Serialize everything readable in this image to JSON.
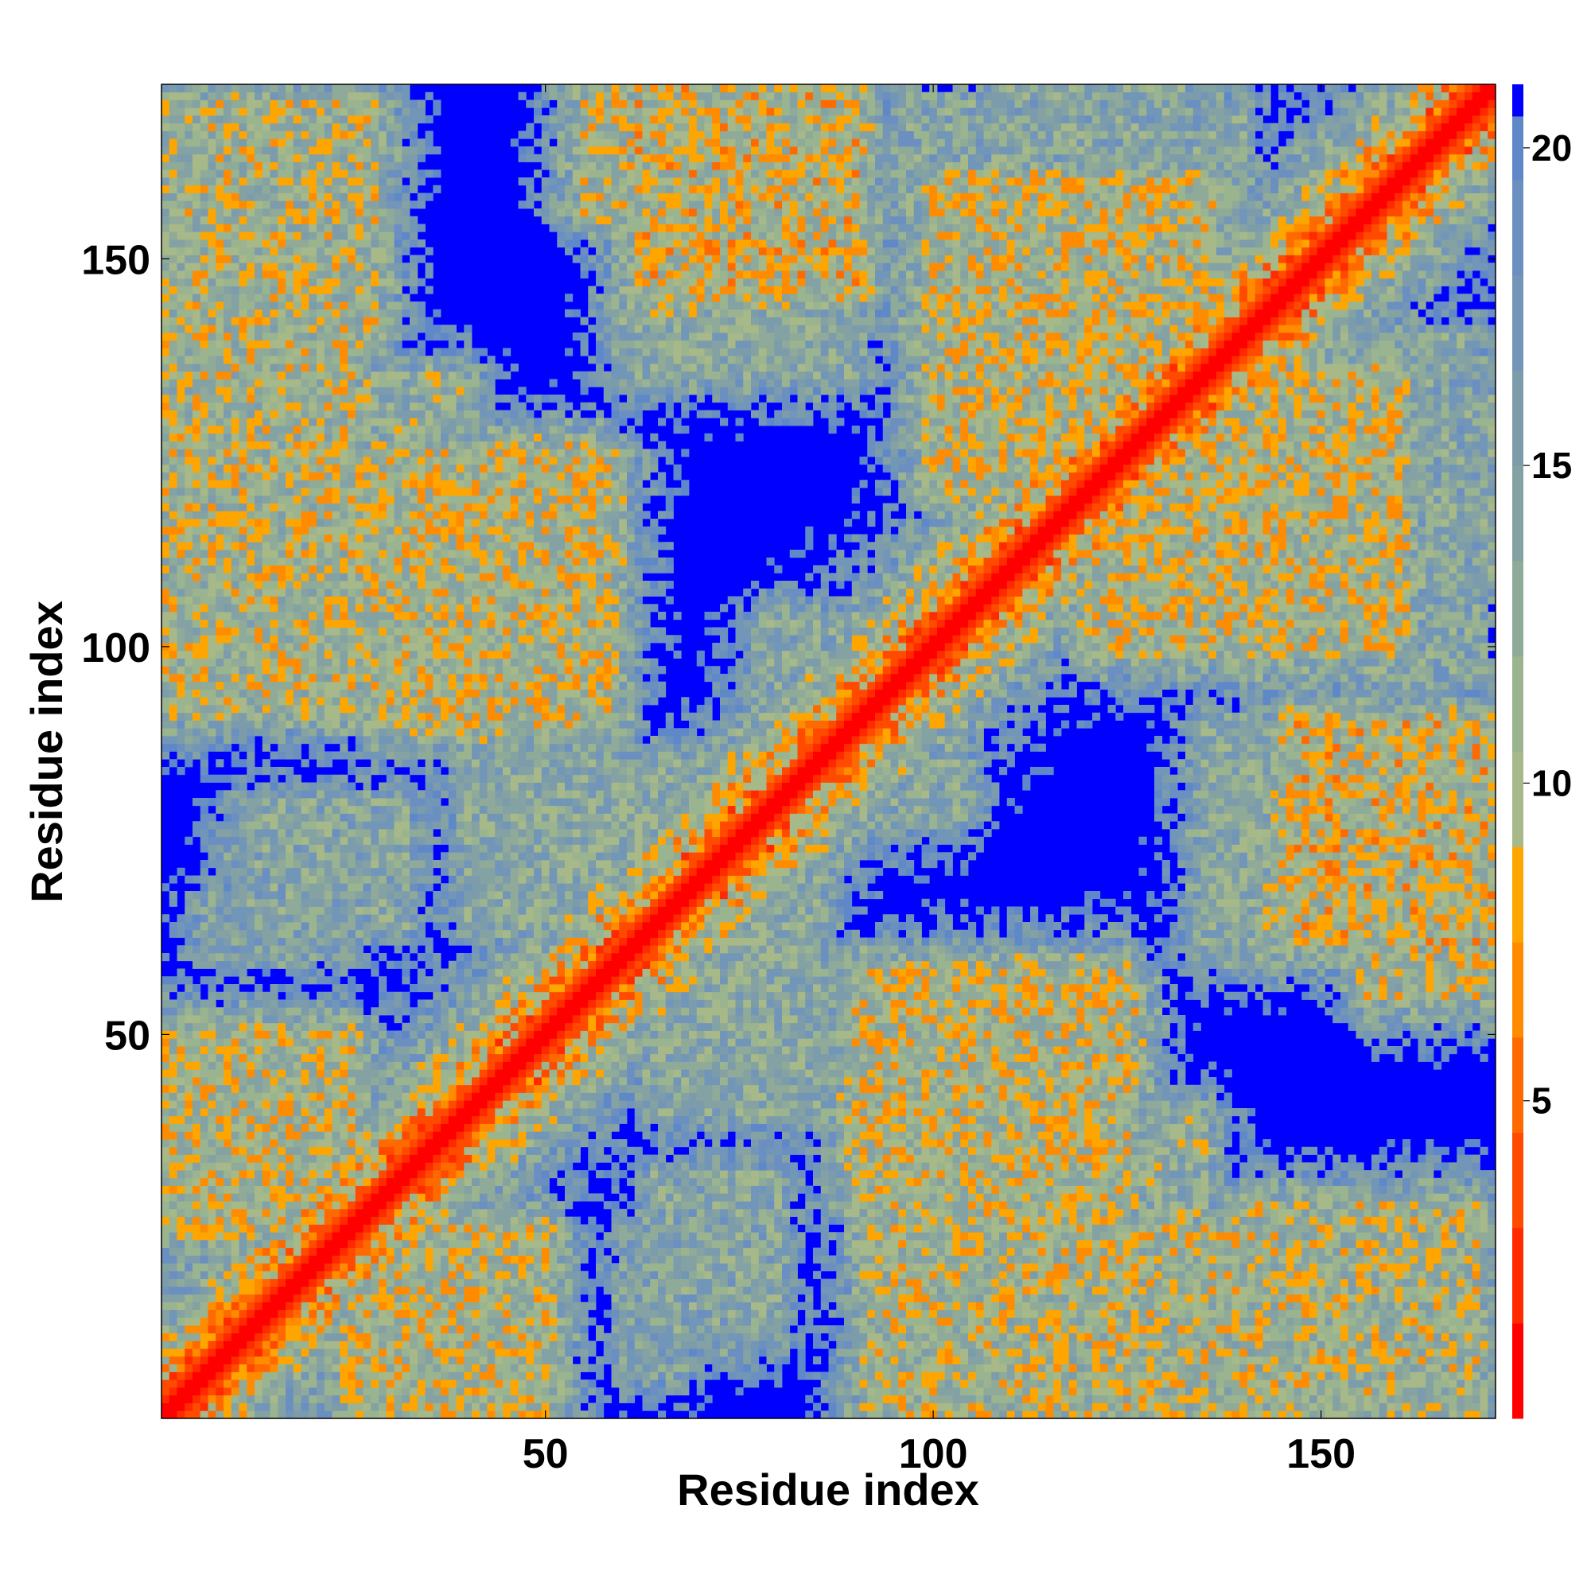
{
  "chart_data": {
    "type": "heatmap",
    "title": "",
    "xlabel": "Residue index",
    "ylabel": "Residue index",
    "n_residues": 172,
    "xlim": [
      1,
      172
    ],
    "ylim": [
      1,
      172
    ],
    "xticks": [
      50,
      100,
      150
    ],
    "yticks": [
      50,
      100,
      150
    ],
    "xtick_labels": [
      "50",
      "100",
      "150"
    ],
    "ytick_labels": [
      "50",
      "100",
      "150"
    ],
    "grid": false,
    "colorbar": {
      "placement": "right",
      "range": [
        0,
        21
      ],
      "ticks": [
        5,
        10,
        15,
        20
      ],
      "tick_labels": [
        "5",
        "10",
        "15",
        "20"
      ],
      "levels": [
        {
          "max": 1.5,
          "color": "#ff0000"
        },
        {
          "max": 3.0,
          "color": "#ff2a00"
        },
        {
          "max": 4.5,
          "color": "#ff4a00"
        },
        {
          "max": 6.0,
          "color": "#ff6a00"
        },
        {
          "max": 7.5,
          "color": "#ff8c00"
        },
        {
          "max": 9.0,
          "color": "#ffa500"
        },
        {
          "max": 10.5,
          "color": "#a7b889"
        },
        {
          "max": 12.0,
          "color": "#9bb490"
        },
        {
          "max": 13.5,
          "color": "#8faa98"
        },
        {
          "max": 15.0,
          "color": "#84a2a4"
        },
        {
          "max": 16.5,
          "color": "#7c9cac"
        },
        {
          "max": 18.0,
          "color": "#7296b8"
        },
        {
          "max": 19.5,
          "color": "#6a8fc0"
        },
        {
          "max": 20.5,
          "color": "#5f88c8"
        },
        {
          "max": 21.0,
          "color": "#0000ff"
        }
      ]
    },
    "contact_bands": [
      {
        "a": [
          1,
          25
        ],
        "b": [
          25,
          50
        ],
        "d": 10.5
      },
      {
        "a": [
          1,
          32
        ],
        "b": [
          92,
          122
        ],
        "d": 11
      },
      {
        "a": [
          28,
          58
        ],
        "b": [
          90,
          125
        ],
        "d": 10.5
      },
      {
        "a": [
          55,
          78
        ],
        "b": [
          156,
          172
        ],
        "d": 11
      },
      {
        "a": [
          100,
          135
        ],
        "b": [
          120,
          160
        ],
        "d": 10.5
      },
      {
        "a": [
          145,
          172
        ],
        "b": [
          62,
          90
        ],
        "d": 10
      },
      {
        "a": [
          110,
          145
        ],
        "b": [
          1,
          25
        ],
        "d": 11
      },
      {
        "a": [
          140,
          170
        ],
        "b": [
          1,
          28
        ],
        "d": 11.5
      },
      {
        "a": [
          118,
          135
        ],
        "b": [
          18,
          40
        ],
        "d": 13
      },
      {
        "a": [
          12,
          32
        ],
        "b": [
          64,
          80
        ],
        "d": 14
      },
      {
        "a": [
          40,
          70
        ],
        "b": [
          64,
          85
        ],
        "d": 13.5
      },
      {
        "a": [
          60,
          90
        ],
        "b": [
          135,
          160
        ],
        "d": 13.5
      },
      {
        "a": [
          96,
          120
        ],
        "b": [
          140,
          170
        ],
        "d": 14
      },
      {
        "a": [
          150,
          172
        ],
        "b": [
          110,
          132
        ],
        "d": 14
      },
      {
        "a": [
          70,
          80
        ],
        "b": [
          10,
          25
        ],
        "d": 15
      },
      {
        "a": [
          60,
          68
        ],
        "b": [
          6,
          24
        ],
        "d": 15
      },
      {
        "a": [
          118,
          140
        ],
        "b": [
          150,
          170
        ],
        "d": 14.5
      },
      {
        "a": [
          94,
          104
        ],
        "b": [
          78,
          100
        ],
        "d": 14
      }
    ]
  }
}
